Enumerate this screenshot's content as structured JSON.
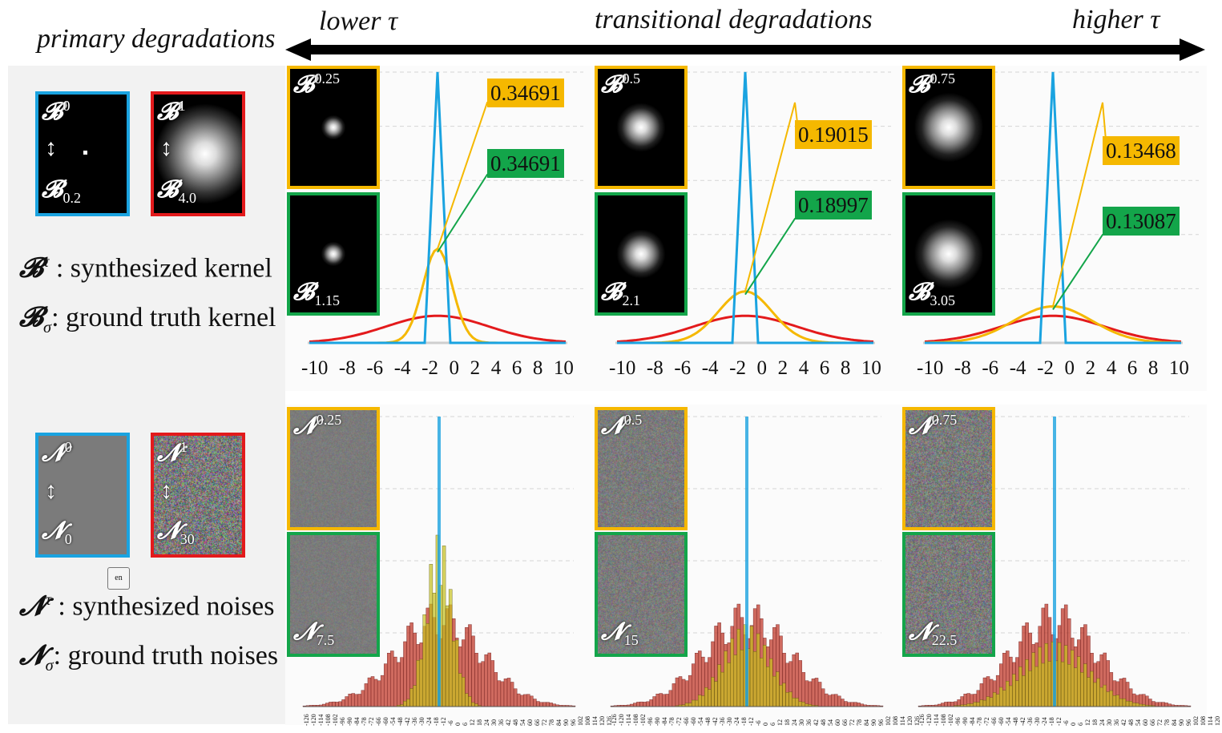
{
  "headers": {
    "primary": "primary degradations",
    "lower": "lower τ",
    "transitional": "transitional degradations",
    "higher": "higher τ"
  },
  "kernel_primary": [
    {
      "sym": "𝓑",
      "sup": "0",
      "sub": "0.2",
      "arrow": "↕",
      "border": "#1aa3e0"
    },
    {
      "sym": "𝓑",
      "sup": "1",
      "sub": "4.0",
      "arrow": "↕",
      "border": "#e31a1c"
    }
  ],
  "noise_primary": [
    {
      "sym": "𝓝",
      "sup": "0",
      "sub": "0",
      "arrow": "↕",
      "border": "#1aa3e0"
    },
    {
      "sym": "𝓝",
      "sup": "1",
      "sub": "30",
      "arrow": "↕",
      "border": "#e31a1c"
    }
  ],
  "legend": {
    "kernel_synth": {
      "sym": "𝓑",
      "sup": "τ",
      "text": " : synthesized kernel"
    },
    "kernel_gt": {
      "sym": "𝓑",
      "sub": "σ",
      "text": ": ground truth kernel"
    },
    "noise_synth": {
      "sym": "𝓝",
      "sup": "τ",
      "text": " : synthesized noises"
    },
    "noise_gt": {
      "sym": "𝓝",
      "sub": "σ",
      "text": ": ground truth noises"
    }
  },
  "icon_label": "en",
  "kernel_panels": [
    {
      "synth_sup": "0.25",
      "gt_sub": "1.15",
      "callout_synth": "0.34691",
      "callout_gt": "0.34691",
      "spot": 0.12
    },
    {
      "synth_sup": "0.5",
      "gt_sub": "2.1",
      "callout_synth": "0.19015",
      "callout_gt": "0.18997",
      "spot": 0.24
    },
    {
      "synth_sup": "0.75",
      "gt_sub": "3.05",
      "callout_synth": "0.13468",
      "callout_gt": "0.13087",
      "spot": 0.34
    }
  ],
  "noise_panels": [
    {
      "synth_sup": "0.25",
      "gt_sub": "7.5"
    },
    {
      "synth_sup": "0.5",
      "gt_sub": "15"
    },
    {
      "synth_sup": "0.75",
      "gt_sub": "22.5"
    }
  ],
  "colors": {
    "blue": "#1aa3e0",
    "red": "#e31a1c",
    "yellow": "#f5b800",
    "green": "#13a54a",
    "hist_red": "#c0392b",
    "hist_yellow": "#c8c21e"
  },
  "chart_data": [
    {
      "type": "line",
      "title": "",
      "x_ticks": [
        "-10",
        "-8",
        "-6",
        "-4",
        "-2",
        "0",
        "2",
        "4",
        "6",
        "8",
        "10"
      ],
      "xlim": [
        -10,
        10
      ],
      "series": [
        {
          "color": "#1aa3e0",
          "peak": 1.0
        },
        {
          "color": "#e31a1c",
          "peak": 0.1
        },
        {
          "color": "#f5b800",
          "peak": 0.34691
        },
        {
          "color": "#13a54a",
          "peak": 0.34691
        }
      ]
    },
    {
      "type": "line",
      "title": "",
      "x_ticks": [
        "-10",
        "-8",
        "-6",
        "-4",
        "-2",
        "0",
        "2",
        "4",
        "6",
        "8",
        "10"
      ],
      "xlim": [
        -10,
        10
      ],
      "series": [
        {
          "color": "#1aa3e0",
          "peak": 1.0
        },
        {
          "color": "#e31a1c",
          "peak": 0.1
        },
        {
          "color": "#f5b800",
          "peak": 0.19015
        },
        {
          "color": "#13a54a",
          "peak": 0.18997
        }
      ]
    },
    {
      "type": "line",
      "title": "",
      "x_ticks": [
        "-10",
        "-8",
        "-6",
        "-4",
        "-2",
        "0",
        "2",
        "4",
        "6",
        "8",
        "10"
      ],
      "xlim": [
        -10,
        10
      ],
      "series": [
        {
          "color": "#1aa3e0",
          "peak": 1.0
        },
        {
          "color": "#e31a1c",
          "peak": 0.1
        },
        {
          "color": "#f5b800",
          "peak": 0.13468
        },
        {
          "color": "#13a54a",
          "peak": 0.13087
        }
      ]
    },
    {
      "type": "bar",
      "title": "",
      "x_ticks": [
        "-126",
        "-120",
        "-114",
        "-108",
        "-102",
        "-96",
        "-90",
        "-84",
        "-78",
        "-72",
        "-66",
        "-60",
        "-54",
        "-48",
        "-42",
        "-36",
        "-30",
        "-24",
        "-18",
        "-12",
        "-6",
        "0",
        "6",
        "12",
        "18",
        "24",
        "30",
        "36",
        "42",
        "48",
        "54",
        "60",
        "66",
        "72",
        "78",
        "84",
        "90",
        "96",
        "102",
        "108",
        "114",
        "120",
        "126"
      ],
      "xlim": [
        -126,
        126
      ]
    },
    {
      "type": "bar",
      "title": "",
      "x_ticks": [
        "-126",
        "-120",
        "-114",
        "-108",
        "-102",
        "-96",
        "-90",
        "-84",
        "-78",
        "-72",
        "-66",
        "-60",
        "-54",
        "-48",
        "-42",
        "-36",
        "-30",
        "-24",
        "-18",
        "-12",
        "-6",
        "0",
        "6",
        "12",
        "18",
        "24",
        "30",
        "36",
        "42",
        "48",
        "54",
        "60",
        "66",
        "72",
        "78",
        "84",
        "90",
        "96",
        "102",
        "108",
        "114",
        "120",
        "126"
      ],
      "xlim": [
        -126,
        126
      ]
    },
    {
      "type": "bar",
      "title": "",
      "x_ticks": [
        "-126",
        "-120",
        "-114",
        "-108",
        "-102",
        "-96",
        "-90",
        "-84",
        "-78",
        "-72",
        "-66",
        "-60",
        "-54",
        "-48",
        "-42",
        "-36",
        "-30",
        "-24",
        "-18",
        "-12",
        "-6",
        "0",
        "6",
        "12",
        "18",
        "24",
        "30",
        "36",
        "42",
        "48",
        "54",
        "60",
        "66",
        "72",
        "78",
        "84",
        "90",
        "96",
        "102",
        "108",
        "114",
        "120",
        "126"
      ],
      "xlim": [
        -126,
        126
      ]
    }
  ]
}
